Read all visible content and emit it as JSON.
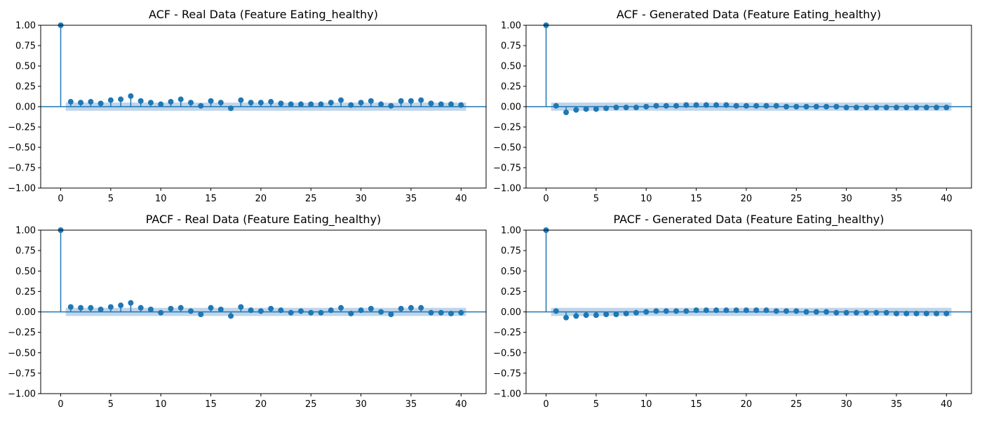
{
  "figure": {
    "palette": {
      "stem": "#1f77b4",
      "confidence_band": "#b8d0e8",
      "zero_line": "#1f77b4",
      "axes": "#000000"
    }
  },
  "chart_data": [
    {
      "type": "stem",
      "title": "ACF - Real Data (Feature Eating_healthy)",
      "xlabel": "",
      "ylabel": "",
      "xlim": [
        -2,
        42.5
      ],
      "ylim": [
        -1.0,
        1.0
      ],
      "xticks": [
        0,
        5,
        10,
        15,
        20,
        25,
        30,
        35,
        40
      ],
      "yticks": [
        -1.0,
        -0.75,
        -0.5,
        -0.25,
        0.0,
        0.25,
        0.5,
        0.75,
        1.0
      ],
      "ytick_labels": [
        "−1.00",
        "−0.75",
        "−0.50",
        "−0.25",
        "0.00",
        "0.25",
        "0.50",
        "0.75",
        "1.00"
      ],
      "confidence_band": {
        "x_start": 0.5,
        "x_end": 40.5,
        "lower": -0.05,
        "upper": 0.05
      },
      "lags": [
        0,
        1,
        2,
        3,
        4,
        5,
        6,
        7,
        8,
        9,
        10,
        11,
        12,
        13,
        14,
        15,
        16,
        17,
        18,
        19,
        20,
        21,
        22,
        23,
        24,
        25,
        26,
        27,
        28,
        29,
        30,
        31,
        32,
        33,
        34,
        35,
        36,
        37,
        38,
        39,
        40
      ],
      "values": [
        1.0,
        0.06,
        0.05,
        0.06,
        0.04,
        0.08,
        0.09,
        0.13,
        0.07,
        0.05,
        0.03,
        0.06,
        0.09,
        0.05,
        0.01,
        0.07,
        0.05,
        -0.02,
        0.08,
        0.05,
        0.05,
        0.06,
        0.04,
        0.03,
        0.03,
        0.03,
        0.03,
        0.05,
        0.08,
        0.02,
        0.05,
        0.07,
        0.03,
        0.01,
        0.07,
        0.07,
        0.08,
        0.04,
        0.03,
        0.03,
        0.02
      ]
    },
    {
      "type": "stem",
      "title": "ACF - Generated Data (Feature Eating_healthy)",
      "xlabel": "",
      "ylabel": "",
      "xlim": [
        -2,
        42.5
      ],
      "ylim": [
        -1.0,
        1.0
      ],
      "xticks": [
        0,
        5,
        10,
        15,
        20,
        25,
        30,
        35,
        40
      ],
      "yticks": [
        -1.0,
        -0.75,
        -0.5,
        -0.25,
        0.0,
        0.25,
        0.5,
        0.75,
        1.0
      ],
      "ytick_labels": [
        "−1.00",
        "−0.75",
        "−0.50",
        "−0.25",
        "0.00",
        "0.25",
        "0.50",
        "0.75",
        "1.00"
      ],
      "confidence_band": {
        "x_start": 0.5,
        "x_end": 40.5,
        "lower": -0.05,
        "upper": 0.05
      },
      "lags": [
        0,
        1,
        2,
        3,
        4,
        5,
        6,
        7,
        8,
        9,
        10,
        11,
        12,
        13,
        14,
        15,
        16,
        17,
        18,
        19,
        20,
        21,
        22,
        23,
        24,
        25,
        26,
        27,
        28,
        29,
        30,
        31,
        32,
        33,
        34,
        35,
        36,
        37,
        38,
        39,
        40
      ],
      "values": [
        1.0,
        0.01,
        -0.07,
        -0.04,
        -0.03,
        -0.03,
        -0.02,
        -0.01,
        -0.01,
        -0.01,
        0.0,
        0.01,
        0.01,
        0.01,
        0.02,
        0.02,
        0.02,
        0.02,
        0.02,
        0.01,
        0.01,
        0.01,
        0.01,
        0.01,
        0.0,
        0.0,
        0.0,
        0.0,
        0.0,
        0.0,
        -0.01,
        -0.01,
        -0.01,
        -0.01,
        -0.01,
        -0.01,
        -0.01,
        -0.01,
        -0.01,
        -0.01,
        -0.01
      ]
    },
    {
      "type": "stem",
      "title": "PACF - Real Data (Feature Eating_healthy)",
      "xlabel": "",
      "ylabel": "",
      "xlim": [
        -2,
        42.5
      ],
      "ylim": [
        -1.0,
        1.0
      ],
      "xticks": [
        0,
        5,
        10,
        15,
        20,
        25,
        30,
        35,
        40
      ],
      "yticks": [
        -1.0,
        -0.75,
        -0.5,
        -0.25,
        0.0,
        0.25,
        0.5,
        0.75,
        1.0
      ],
      "ytick_labels": [
        "−1.00",
        "−0.75",
        "−0.50",
        "−0.25",
        "0.00",
        "0.25",
        "0.50",
        "0.75",
        "1.00"
      ],
      "confidence_band": {
        "x_start": 0.5,
        "x_end": 40.5,
        "lower": -0.05,
        "upper": 0.05
      },
      "lags": [
        0,
        1,
        2,
        3,
        4,
        5,
        6,
        7,
        8,
        9,
        10,
        11,
        12,
        13,
        14,
        15,
        16,
        17,
        18,
        19,
        20,
        21,
        22,
        23,
        24,
        25,
        26,
        27,
        28,
        29,
        30,
        31,
        32,
        33,
        34,
        35,
        36,
        37,
        38,
        39,
        40
      ],
      "values": [
        1.0,
        0.06,
        0.05,
        0.05,
        0.03,
        0.06,
        0.08,
        0.11,
        0.05,
        0.03,
        -0.01,
        0.04,
        0.05,
        0.01,
        -0.03,
        0.05,
        0.03,
        -0.05,
        0.06,
        0.02,
        0.01,
        0.04,
        0.02,
        -0.01,
        0.01,
        -0.01,
        -0.01,
        0.02,
        0.05,
        -0.02,
        0.02,
        0.04,
        0.0,
        -0.03,
        0.04,
        0.05,
        0.05,
        -0.01,
        -0.01,
        -0.02,
        -0.01
      ]
    },
    {
      "type": "stem",
      "title": "PACF - Generated Data (Feature Eating_healthy)",
      "xlabel": "",
      "ylabel": "",
      "xlim": [
        -2,
        42.5
      ],
      "ylim": [
        -1.0,
        1.0
      ],
      "xticks": [
        0,
        5,
        10,
        15,
        20,
        25,
        30,
        35,
        40
      ],
      "yticks": [
        -1.0,
        -0.75,
        -0.5,
        -0.25,
        0.0,
        0.25,
        0.5,
        0.75,
        1.0
      ],
      "ytick_labels": [
        "−1.00",
        "−0.75",
        "−0.50",
        "−0.25",
        "0.00",
        "0.25",
        "0.50",
        "0.75",
        "1.00"
      ],
      "confidence_band": {
        "x_start": 0.5,
        "x_end": 40.5,
        "lower": -0.05,
        "upper": 0.05
      },
      "lags": [
        0,
        1,
        2,
        3,
        4,
        5,
        6,
        7,
        8,
        9,
        10,
        11,
        12,
        13,
        14,
        15,
        16,
        17,
        18,
        19,
        20,
        21,
        22,
        23,
        24,
        25,
        26,
        27,
        28,
        29,
        30,
        31,
        32,
        33,
        34,
        35,
        36,
        37,
        38,
        39,
        40
      ],
      "values": [
        1.0,
        0.01,
        -0.07,
        -0.05,
        -0.04,
        -0.04,
        -0.03,
        -0.03,
        -0.02,
        -0.01,
        0.0,
        0.01,
        0.01,
        0.01,
        0.01,
        0.02,
        0.02,
        0.02,
        0.02,
        0.02,
        0.02,
        0.02,
        0.02,
        0.01,
        0.01,
        0.01,
        0.0,
        0.0,
        0.0,
        -0.01,
        -0.01,
        -0.01,
        -0.01,
        -0.01,
        -0.01,
        -0.02,
        -0.02,
        -0.02,
        -0.02,
        -0.02,
        -0.02
      ]
    }
  ]
}
